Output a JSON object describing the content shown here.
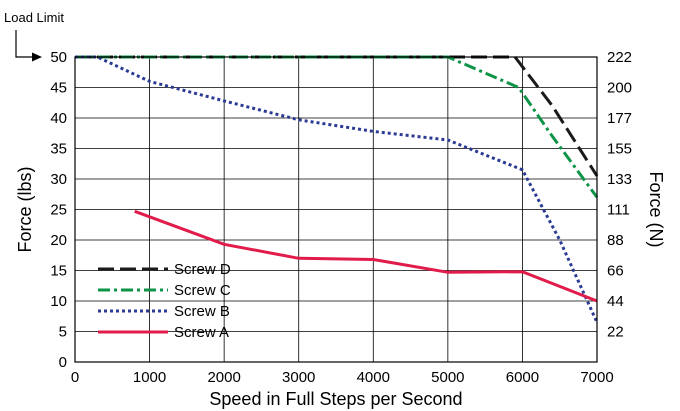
{
  "chart_data": {
    "type": "line",
    "xlabel": "Speed in Full Steps per Second",
    "ylabel": "Force (lbs)",
    "ylabel_right": "Force (N)",
    "annotation": "Load Limit",
    "xlim": [
      0,
      7000
    ],
    "ylim": [
      0,
      50
    ],
    "x_ticks": [
      0,
      1000,
      2000,
      3000,
      4000,
      5000,
      6000,
      7000
    ],
    "y_ticks": [
      0,
      5,
      10,
      15,
      20,
      25,
      30,
      35,
      40,
      45,
      50
    ],
    "right_ticks": [
      {
        "lbs": 5,
        "label": "22"
      },
      {
        "lbs": 10,
        "label": "44"
      },
      {
        "lbs": 15,
        "label": "66"
      },
      {
        "lbs": 20,
        "label": "88"
      },
      {
        "lbs": 25,
        "label": "111"
      },
      {
        "lbs": 30,
        "label": "133"
      },
      {
        "lbs": 35,
        "label": "155"
      },
      {
        "lbs": 40,
        "label": "177"
      },
      {
        "lbs": 45,
        "label": "200"
      },
      {
        "lbs": 50,
        "label": "222"
      }
    ],
    "grid": true,
    "legend_position": "bottom-left",
    "series": [
      {
        "name": "Screw D",
        "color": "#1a1a1a",
        "dash": "long-dash",
        "points": [
          [
            0,
            50
          ],
          [
            5000,
            50
          ],
          [
            5900,
            50
          ],
          [
            6400,
            42
          ],
          [
            7000,
            30.5
          ]
        ]
      },
      {
        "name": "Screw C",
        "color": "#0e9447",
        "dash": "dash-dot",
        "points": [
          [
            0,
            50
          ],
          [
            5000,
            50
          ],
          [
            5950,
            45
          ],
          [
            6400,
            37
          ],
          [
            7000,
            27
          ]
        ]
      },
      {
        "name": "Screw B",
        "color": "#2b3a93",
        "dash": "dotted",
        "points": [
          [
            0,
            50
          ],
          [
            300,
            50
          ],
          [
            1000,
            46
          ],
          [
            2000,
            42.8
          ],
          [
            3000,
            39.7
          ],
          [
            4000,
            37.8
          ],
          [
            5000,
            36.4
          ],
          [
            6000,
            31.5
          ],
          [
            6500,
            20
          ],
          [
            7000,
            6.5
          ]
        ]
      },
      {
        "name": "Screw A",
        "color": "#e11b4a",
        "dash": "solid",
        "points": [
          [
            800,
            24.7
          ],
          [
            2000,
            19.3
          ],
          [
            3000,
            17
          ],
          [
            4000,
            16.8
          ],
          [
            5000,
            14.7
          ],
          [
            6000,
            14.8
          ],
          [
            7000,
            10
          ]
        ]
      }
    ]
  }
}
